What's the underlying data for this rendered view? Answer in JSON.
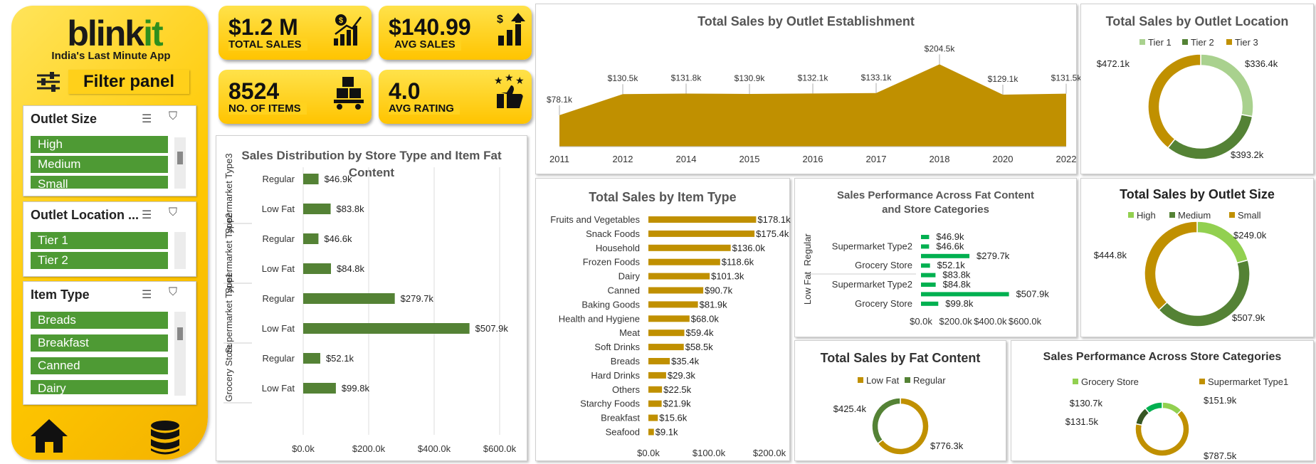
{
  "brand": {
    "name_part1": "blink",
    "name_part2": "it",
    "tagline": "India's Last Minute App"
  },
  "filter_panel": {
    "title": "Filter panel"
  },
  "slicers": [
    {
      "title": "Outlet Size",
      "items": [
        "High",
        "Medium",
        "Small"
      ]
    },
    {
      "title": "Outlet Location ...",
      "items": [
        "Tier 1",
        "Tier 2"
      ]
    },
    {
      "title": "Item Type",
      "items": [
        "Breads",
        "Breakfast",
        "Canned",
        "Dairy"
      ]
    }
  ],
  "kpis": {
    "total_sales": {
      "value": "$1.2 M",
      "label": "TOTAL SALES"
    },
    "avg_sales": {
      "value": "$140.99",
      "label": "AVG SALES"
    },
    "items": {
      "value": "8524",
      "label": "NO. OF ITEMS"
    },
    "avg_rating": {
      "value": "4.0",
      "label": "AVG RATING"
    }
  },
  "colors": {
    "gold": "#c09000",
    "green": "#548235",
    "light_green": "#a9d18e",
    "bright_green": "#00b050",
    "lime": "#92d050"
  },
  "chart_data": [
    {
      "id": "establishment",
      "type": "area",
      "title": "Total Sales by Outlet Establishment",
      "x": [
        "2011",
        "2012",
        "2014",
        "2015",
        "2016",
        "2017",
        "2018",
        "2020",
        "2022"
      ],
      "values": [
        78.1,
        130.5,
        131.8,
        130.9,
        132.1,
        133.1,
        204.5,
        129.1,
        131.5
      ],
      "labels": [
        "$78.1k",
        "$130.5k",
        "$131.8k",
        "$130.9k",
        "$132.1k",
        "$133.1k",
        "$204.5k",
        "$129.1k",
        "$131.5k"
      ],
      "ylim": [
        0,
        230
      ]
    },
    {
      "id": "location",
      "type": "pie",
      "title": "Total Sales by Outlet Location",
      "legend": [
        "Tier 1",
        "Tier 2",
        "Tier 3"
      ],
      "values": [
        336.4,
        393.2,
        472.1
      ],
      "labels": [
        "$336.4k",
        "$393.2k",
        "$472.1k"
      ],
      "colors": [
        "#a9d18e",
        "#548235",
        "#c09000"
      ]
    },
    {
      "id": "store_fat",
      "type": "bar",
      "title": "Sales Distribution by Store Type and Item Fat Content",
      "groups": [
        "Supermarket Type3",
        "Supermarket Type2",
        "Supermarket Type1",
        "Grocery Store"
      ],
      "rows": [
        {
          "cat": "Regular",
          "value": 46.9,
          "label": "$46.9k"
        },
        {
          "cat": "Low Fat",
          "value": 83.8,
          "label": "$83.8k"
        },
        {
          "cat": "Regular",
          "value": 46.6,
          "label": "$46.6k"
        },
        {
          "cat": "Low Fat",
          "value": 84.8,
          "label": "$84.8k"
        },
        {
          "cat": "Regular",
          "value": 279.7,
          "label": "$279.7k"
        },
        {
          "cat": "Low Fat",
          "value": 507.9,
          "label": "$507.9k"
        },
        {
          "cat": "Regular",
          "value": 52.1,
          "label": "$52.1k"
        },
        {
          "cat": "Low Fat",
          "value": 99.8,
          "label": "$99.8k"
        }
      ],
      "ticks": [
        "$0.0k",
        "$200.0k",
        "$400.0k",
        "$600.0k"
      ],
      "xlim": [
        0,
        600
      ]
    },
    {
      "id": "item_type",
      "type": "bar",
      "title": "Total Sales by Item Type",
      "categories": [
        "Fruits and Vegetables",
        "Snack Foods",
        "Household",
        "Frozen Foods",
        "Dairy",
        "Canned",
        "Baking Goods",
        "Health and Hygiene",
        "Meat",
        "Soft Drinks",
        "Breads",
        "Hard Drinks",
        "Others",
        "Starchy Foods",
        "Breakfast",
        "Seafood"
      ],
      "values": [
        178.1,
        175.4,
        136.0,
        118.6,
        101.3,
        90.7,
        81.9,
        68.0,
        59.4,
        58.5,
        35.4,
        29.3,
        22.5,
        21.9,
        15.6,
        9.1
      ],
      "labels": [
        "$178.1k",
        "$175.4k",
        "$136.0k",
        "$118.6k",
        "$101.3k",
        "$90.7k",
        "$81.9k",
        "$68.0k",
        "$59.4k",
        "$58.5k",
        "$35.4k",
        "$29.3k",
        "$22.5k",
        "$21.9k",
        "$15.6k",
        "$9.1k"
      ],
      "ticks": [
        "$0.0k",
        "$100.0k",
        "$200.0k"
      ],
      "xlim": [
        0,
        200
      ]
    },
    {
      "id": "fat_store",
      "type": "bar",
      "title": "Sales Performance Across Fat Content and Store Categories",
      "groups": [
        "Regular",
        "Low Fat"
      ],
      "rows": [
        {
          "cat": "",
          "value": 46.9,
          "label": "$46.9k"
        },
        {
          "cat": "Supermarket Type2",
          "value": 46.6,
          "label": "$46.6k"
        },
        {
          "cat": "",
          "value": 279.7,
          "label": "$279.7k"
        },
        {
          "cat": "Grocery Store",
          "value": 52.1,
          "label": "$52.1k"
        },
        {
          "cat": "",
          "value": 83.8,
          "label": "$83.8k"
        },
        {
          "cat": "Supermarket Type2",
          "value": 84.8,
          "label": "$84.8k"
        },
        {
          "cat": "",
          "value": 507.9,
          "label": "$507.9k"
        },
        {
          "cat": "Grocery Store",
          "value": 99.8,
          "label": "$99.8k"
        }
      ],
      "ticks": [
        "$0.0k",
        "$200.0k",
        "$400.0k",
        "$600.0k"
      ],
      "xlim": [
        0,
        600
      ]
    },
    {
      "id": "size",
      "type": "pie",
      "title": "Total Sales by Outlet Size",
      "legend": [
        "High",
        "Medium",
        "Small"
      ],
      "values": [
        249.0,
        507.9,
        444.8
      ],
      "labels": [
        "$249.0k",
        "$507.9k",
        "$444.8k"
      ],
      "colors": [
        "#92d050",
        "#548235",
        "#c09000"
      ]
    },
    {
      "id": "fat",
      "type": "pie",
      "title": "Total Sales by Fat Content",
      "legend": [
        "Low Fat",
        "Regular"
      ],
      "values": [
        776.3,
        425.4
      ],
      "labels": [
        "$776.3k",
        "$425.4k"
      ],
      "colors": [
        "#c09000",
        "#548235"
      ]
    },
    {
      "id": "store_cat",
      "type": "pie",
      "title": "Sales Performance Across Store Categories",
      "legend": [
        "Grocery Store",
        "Supermarket Type1"
      ],
      "values": [
        151.9,
        787.5,
        131.5,
        130.7
      ],
      "labels": [
        "$151.9k",
        "$787.5k",
        "$131.5k",
        "$130.7k"
      ],
      "colors": [
        "#92d050",
        "#c09000",
        "#375623",
        "#00b050"
      ]
    }
  ]
}
